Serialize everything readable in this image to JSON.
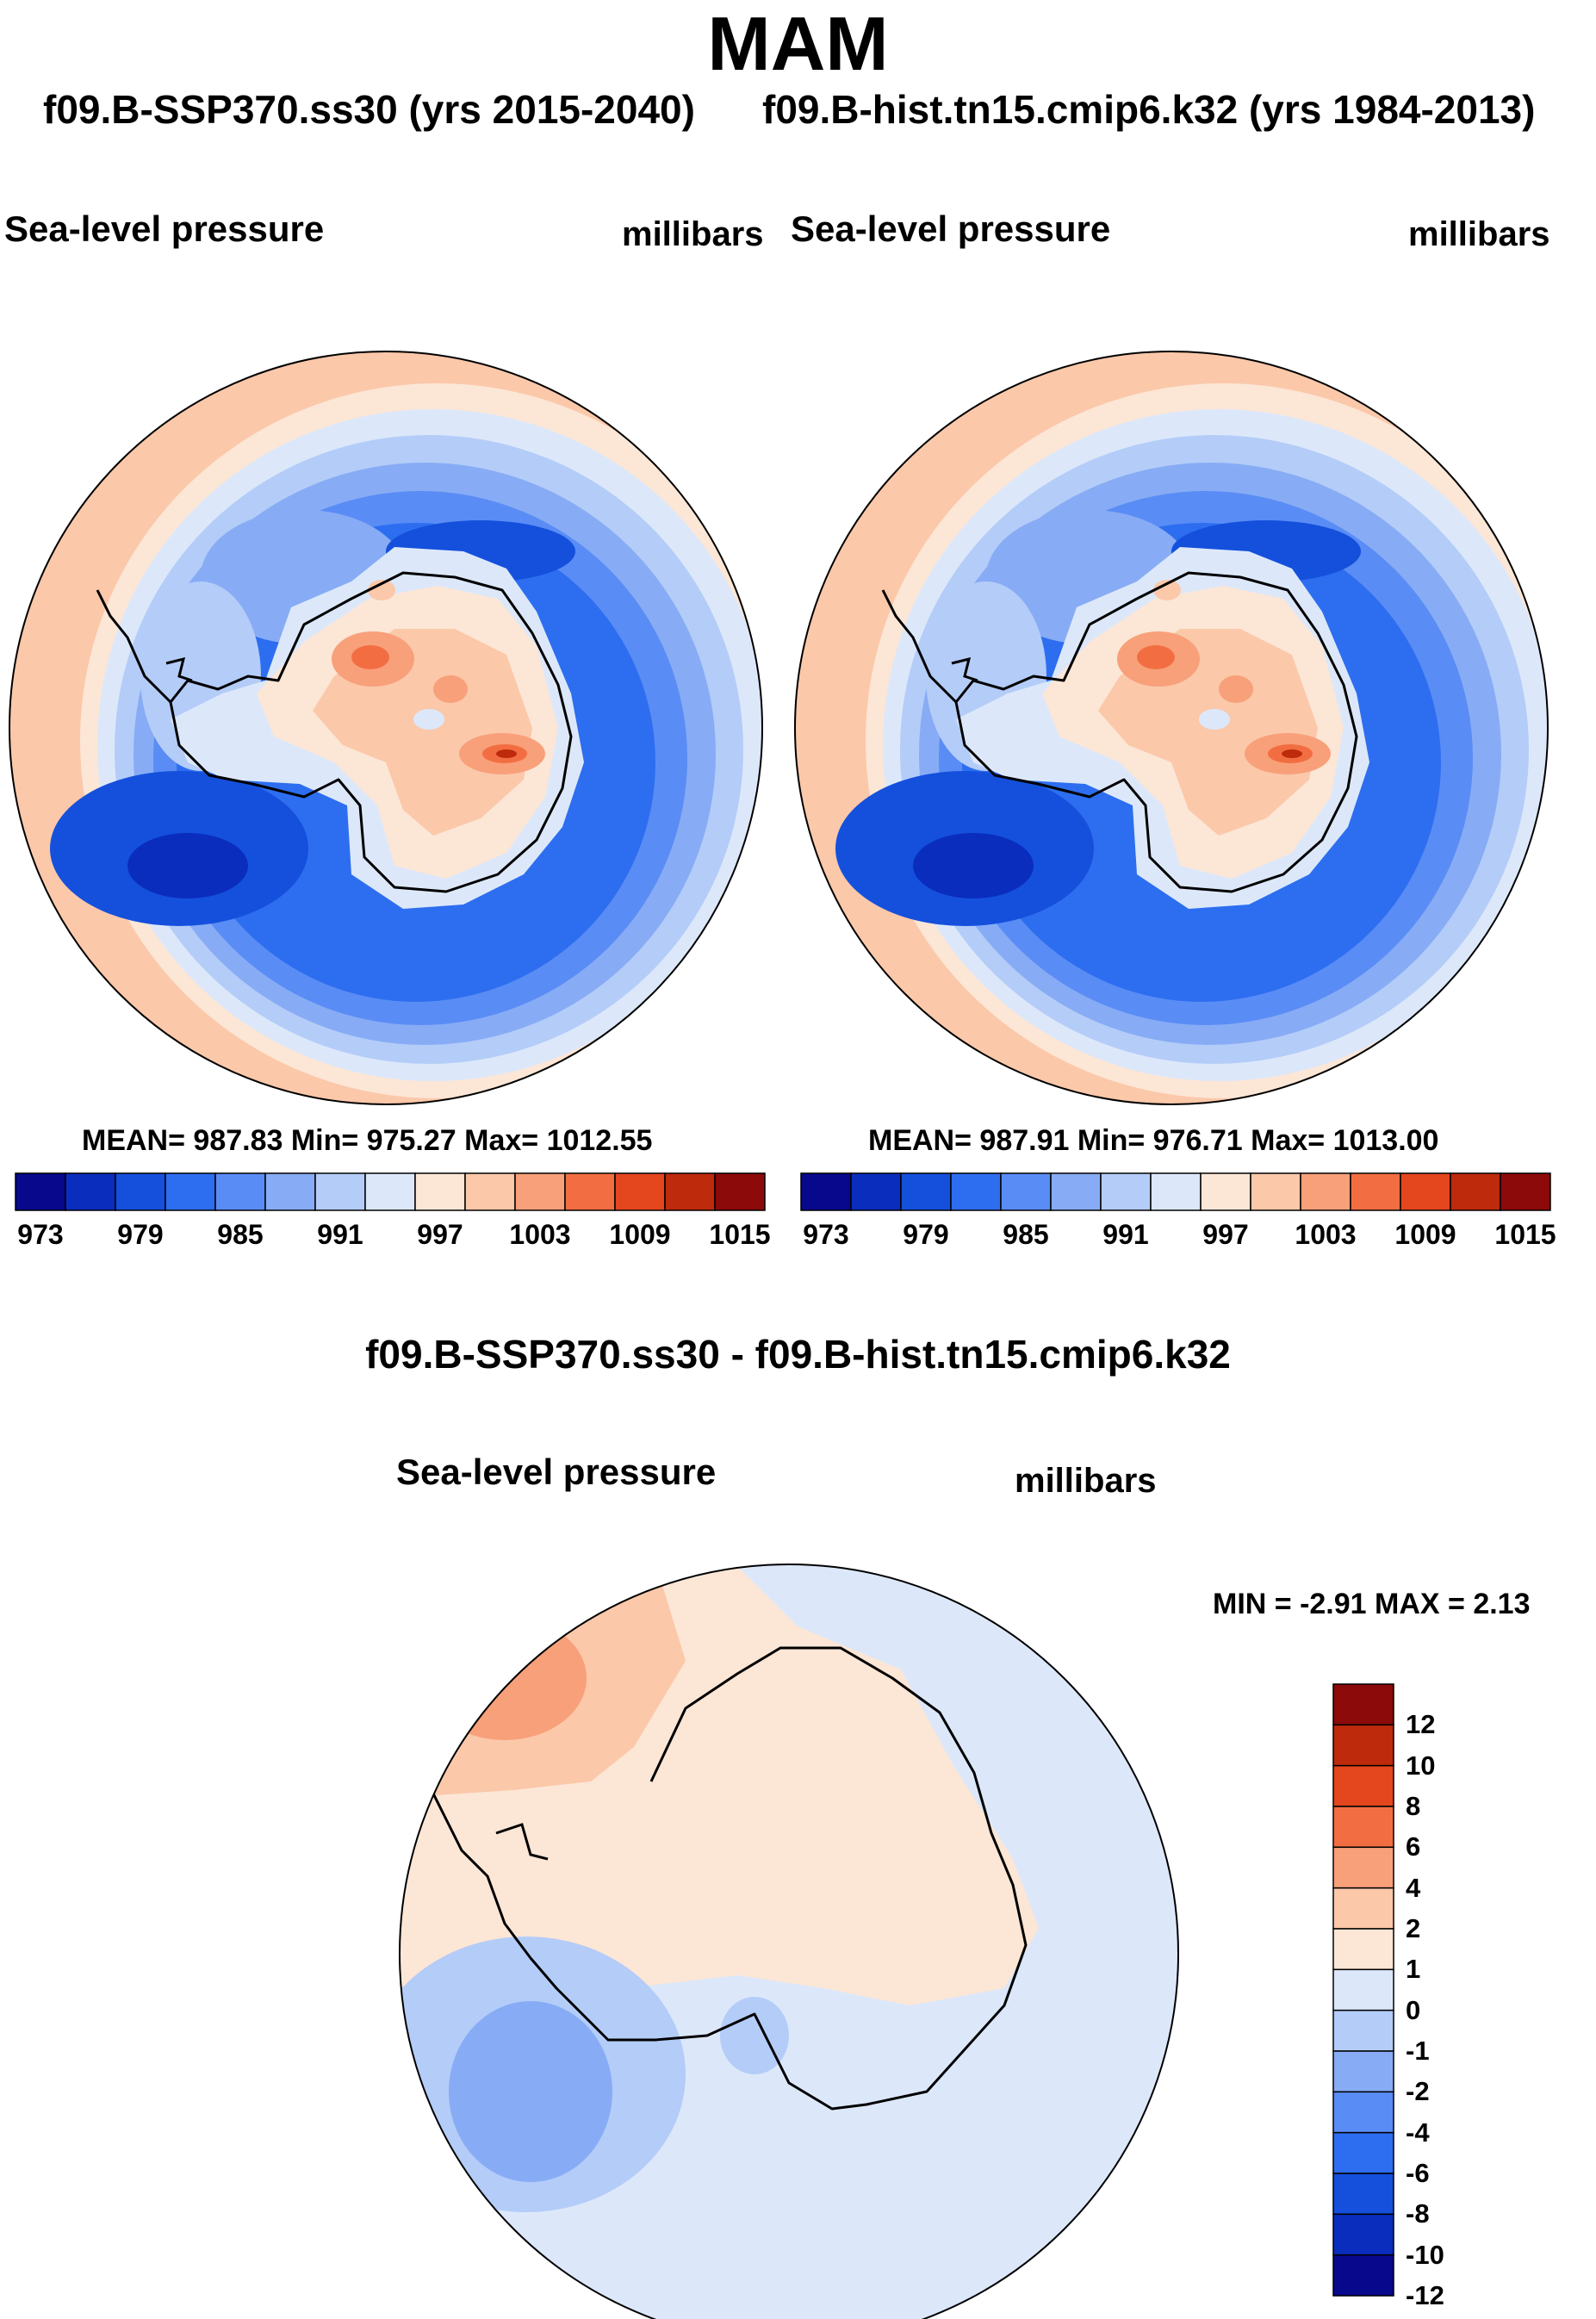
{
  "figure": {
    "season": "MAM",
    "case_label": "f09.B-SSP370.ss30 (yrs 2015-2040)",
    "control_label": "f09.B-hist.tn15.cmip6.k32 (yrs 1984-2013)",
    "diff_title": "f09.B-SSP370.ss30 - f09.B-hist.tn15.cmip6.k32"
  },
  "panels": [
    {
      "id": "case",
      "variable": "Sea-level pressure",
      "units": "millibars",
      "stats_text": "MEAN= 987.83  Min= 975.27  Max= 1012.55",
      "mean": 987.83,
      "min": 975.27,
      "max": 1012.55
    },
    {
      "id": "control",
      "variable": "Sea-level pressure",
      "units": "millibars",
      "stats_text": "MEAN= 987.91  Min= 976.71  Max= 1013.00",
      "mean": 987.91,
      "min": 976.71,
      "max": 1013.0
    },
    {
      "id": "difference",
      "variable": "Sea-level pressure",
      "units": "millibars",
      "stats_text": "MIN =  -2.91 MAX =   2.13",
      "min": -2.91,
      "max": 2.13
    }
  ],
  "abs_colorbar": {
    "tick_labels": [
      "973",
      "979",
      "985",
      "991",
      "997",
      "1003",
      "1009",
      "1015"
    ],
    "levels": [
      973,
      976,
      979,
      982,
      985,
      988,
      991,
      994,
      997,
      1000,
      1003,
      1006,
      1009,
      1012,
      1015
    ],
    "colors": [
      "#08088c",
      "#0a2dbe",
      "#1450dc",
      "#2d6ef0",
      "#5a8cf5",
      "#87acf5",
      "#b4ccf8",
      "#dce8fa",
      "#fce6d6",
      "#fbc8aa",
      "#f8a07a",
      "#f26e42",
      "#e4461e",
      "#be2a0c",
      "#8c0a0a"
    ]
  },
  "diff_colorbar": {
    "tick_labels": [
      "12",
      "10",
      "8",
      "6",
      "4",
      "2",
      "1",
      "0",
      "-1",
      "-2",
      "-4",
      "-6",
      "-8",
      "-10",
      "-12"
    ],
    "colors": [
      "#8c0a0a",
      "#be2a0c",
      "#e4461e",
      "#f26e42",
      "#f8a07a",
      "#fbc8aa",
      "#fce6d6",
      "#dce8fa",
      "#b4ccf8",
      "#87acf5",
      "#5a8cf5",
      "#2d6ef0",
      "#1450dc",
      "#0a2dbe",
      "#08088c"
    ]
  }
}
